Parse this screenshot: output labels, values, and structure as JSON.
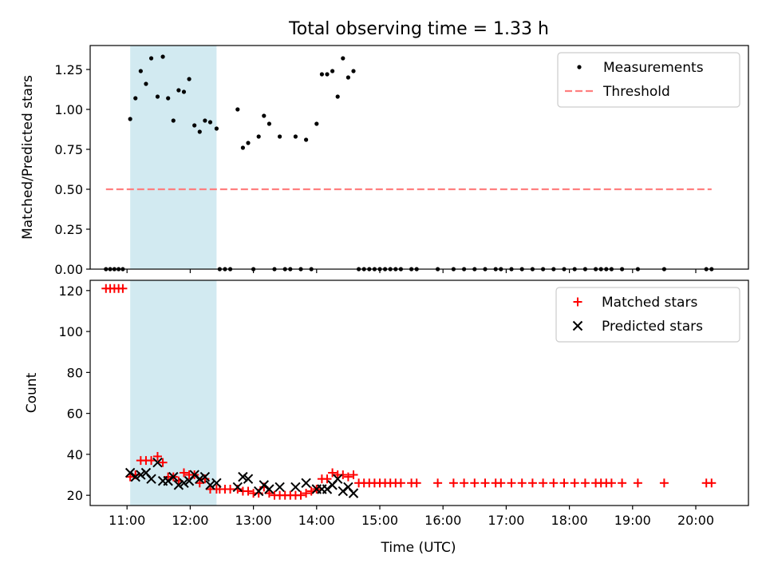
{
  "figure_title": "Total observing time = 1.33 h",
  "highlight_color": "#add8e6",
  "chart_data": [
    {
      "type": "scatter",
      "title": "Total observing time = 1.33 h",
      "xlabel": "",
      "ylabel": "Matched/Predicted stars",
      "xlim": [
        "10:25",
        "20:50"
      ],
      "ylim": [
        0,
        1.4
      ],
      "yticks": [
        0,
        0.25,
        0.5,
        0.75,
        1.0,
        1.25
      ],
      "ytick_labels": [
        "0.00",
        "0.25",
        "0.50",
        "0.75",
        "1.00",
        "1.25"
      ],
      "grid": false,
      "legend_position": "top-right",
      "highlight_span": [
        "11:03",
        "12:25"
      ],
      "series": [
        {
          "name": "Measurements",
          "marker": "dot",
          "color": "#000000",
          "points": [
            [
              "10:40",
              0
            ],
            [
              "10:44",
              0
            ],
            [
              "10:48",
              0
            ],
            [
              "10:52",
              0
            ],
            [
              "10:56",
              0
            ],
            [
              "11:03",
              0.94
            ],
            [
              "11:08",
              1.07
            ],
            [
              "11:13",
              1.24
            ],
            [
              "11:18",
              1.16
            ],
            [
              "11:23",
              1.32
            ],
            [
              "11:29",
              1.08
            ],
            [
              "11:34",
              1.33
            ],
            [
              "11:39",
              1.07
            ],
            [
              "11:44",
              0.93
            ],
            [
              "11:49",
              1.12
            ],
            [
              "11:54",
              1.11
            ],
            [
              "11:59",
              1.19
            ],
            [
              "12:04",
              0.9
            ],
            [
              "12:09",
              0.86
            ],
            [
              "12:14",
              0.93
            ],
            [
              "12:19",
              0.92
            ],
            [
              "12:25",
              0.88
            ],
            [
              "12:28",
              0
            ],
            [
              "12:33",
              0
            ],
            [
              "12:38",
              0
            ],
            [
              "12:45",
              1.0
            ],
            [
              "12:50",
              0.76
            ],
            [
              "12:55",
              0.79
            ],
            [
              "13:00",
              0
            ],
            [
              "13:05",
              0.83
            ],
            [
              "13:10",
              0.96
            ],
            [
              "13:15",
              0.91
            ],
            [
              "13:20",
              0
            ],
            [
              "13:25",
              0.83
            ],
            [
              "13:30",
              0
            ],
            [
              "13:35",
              0
            ],
            [
              "13:40",
              0.83
            ],
            [
              "13:45",
              0
            ],
            [
              "13:50",
              0.81
            ],
            [
              "13:55",
              0
            ],
            [
              "14:00",
              0.91
            ],
            [
              "14:05",
              1.22
            ],
            [
              "14:10",
              1.22
            ],
            [
              "14:15",
              1.24
            ],
            [
              "14:20",
              1.08
            ],
            [
              "14:25",
              1.32
            ],
            [
              "14:30",
              1.2
            ],
            [
              "14:35",
              1.24
            ],
            [
              "14:40",
              0
            ],
            [
              "14:45",
              0
            ],
            [
              "14:50",
              0
            ],
            [
              "14:55",
              0
            ],
            [
              "15:00",
              0
            ],
            [
              "15:05",
              0
            ],
            [
              "15:10",
              0
            ],
            [
              "15:15",
              0
            ],
            [
              "15:20",
              0
            ],
            [
              "15:30",
              0
            ],
            [
              "15:35",
              0
            ],
            [
              "15:55",
              0
            ],
            [
              "16:10",
              0
            ],
            [
              "16:20",
              0
            ],
            [
              "16:30",
              0
            ],
            [
              "16:40",
              0
            ],
            [
              "16:50",
              0
            ],
            [
              "16:55",
              0
            ],
            [
              "17:05",
              0
            ],
            [
              "17:15",
              0
            ],
            [
              "17:25",
              0
            ],
            [
              "17:35",
              0
            ],
            [
              "17:45",
              0
            ],
            [
              "17:55",
              0
            ],
            [
              "18:05",
              0
            ],
            [
              "18:15",
              0
            ],
            [
              "18:25",
              0
            ],
            [
              "18:30",
              0
            ],
            [
              "18:35",
              0
            ],
            [
              "18:40",
              0
            ],
            [
              "18:50",
              0
            ],
            [
              "19:05",
              0
            ],
            [
              "19:30",
              0
            ],
            [
              "20:10",
              0
            ],
            [
              "20:15",
              0
            ]
          ]
        },
        {
          "name": "Threshold",
          "type": "line",
          "style": "dashed",
          "color": "#ff7f7f",
          "points": [
            [
              "10:40",
              0.5
            ],
            [
              "20:15",
              0.5
            ]
          ]
        }
      ]
    },
    {
      "type": "scatter",
      "title": "",
      "xlabel": "Time (UTC)",
      "ylabel": "Count",
      "xlim": [
        "10:25",
        "20:50"
      ],
      "ylim": [
        15,
        125
      ],
      "yticks": [
        20,
        40,
        60,
        80,
        100,
        120
      ],
      "ytick_labels": [
        "20",
        "40",
        "60",
        "80",
        "100",
        "120"
      ],
      "xticks": [
        "11:00",
        "12:00",
        "13:00",
        "14:00",
        "15:00",
        "16:00",
        "17:00",
        "18:00",
        "19:00",
        "20:00"
      ],
      "grid": false,
      "legend_position": "top-right",
      "highlight_span": [
        "11:03",
        "12:25"
      ],
      "series": [
        {
          "name": "Matched stars",
          "marker": "plus",
          "color": "#ff0000",
          "points": [
            [
              "10:40",
              121
            ],
            [
              "10:44",
              121
            ],
            [
              "10:48",
              121
            ],
            [
              "10:52",
              121
            ],
            [
              "10:56",
              121
            ],
            [
              "11:03",
              29
            ],
            [
              "11:08",
              30
            ],
            [
              "11:13",
              37
            ],
            [
              "11:18",
              37
            ],
            [
              "11:23",
              37
            ],
            [
              "11:29",
              39
            ],
            [
              "11:34",
              36
            ],
            [
              "11:39",
              29
            ],
            [
              "11:44",
              29
            ],
            [
              "11:49",
              27
            ],
            [
              "11:54",
              31
            ],
            [
              "11:59",
              30
            ],
            [
              "12:04",
              30
            ],
            [
              "12:09",
              26
            ],
            [
              "12:14",
              28
            ],
            [
              "12:19",
              23
            ],
            [
              "12:25",
              23
            ],
            [
              "12:28",
              23
            ],
            [
              "12:33",
              23
            ],
            [
              "12:38",
              23
            ],
            [
              "12:45",
              23
            ],
            [
              "12:50",
              22
            ],
            [
              "12:55",
              22
            ],
            [
              "13:00",
              21
            ],
            [
              "13:05",
              21
            ],
            [
              "13:10",
              24
            ],
            [
              "13:15",
              21
            ],
            [
              "13:20",
              20
            ],
            [
              "13:25",
              20
            ],
            [
              "13:30",
              20
            ],
            [
              "13:35",
              20
            ],
            [
              "13:40",
              20
            ],
            [
              "13:45",
              20
            ],
            [
              "13:50",
              21
            ],
            [
              "13:55",
              22
            ],
            [
              "14:00",
              23
            ],
            [
              "14:05",
              28
            ],
            [
              "14:10",
              28
            ],
            [
              "14:15",
              31
            ],
            [
              "14:20",
              30
            ],
            [
              "14:25",
              30
            ],
            [
              "14:30",
              29
            ],
            [
              "14:35",
              30
            ],
            [
              "14:40",
              26
            ],
            [
              "14:45",
              26
            ],
            [
              "14:50",
              26
            ],
            [
              "14:55",
              26
            ],
            [
              "15:00",
              26
            ],
            [
              "15:05",
              26
            ],
            [
              "15:10",
              26
            ],
            [
              "15:15",
              26
            ],
            [
              "15:20",
              26
            ],
            [
              "15:30",
              26
            ],
            [
              "15:35",
              26
            ],
            [
              "15:55",
              26
            ],
            [
              "16:10",
              26
            ],
            [
              "16:20",
              26
            ],
            [
              "16:30",
              26
            ],
            [
              "16:40",
              26
            ],
            [
              "16:50",
              26
            ],
            [
              "16:55",
              26
            ],
            [
              "17:05",
              26
            ],
            [
              "17:15",
              26
            ],
            [
              "17:25",
              26
            ],
            [
              "17:35",
              26
            ],
            [
              "17:45",
              26
            ],
            [
              "17:55",
              26
            ],
            [
              "18:05",
              26
            ],
            [
              "18:15",
              26
            ],
            [
              "18:25",
              26
            ],
            [
              "18:30",
              26
            ],
            [
              "18:35",
              26
            ],
            [
              "18:40",
              26
            ],
            [
              "18:50",
              26
            ],
            [
              "19:05",
              26
            ],
            [
              "19:30",
              26
            ],
            [
              "20:10",
              26
            ],
            [
              "20:15",
              26
            ]
          ]
        },
        {
          "name": "Predicted stars",
          "marker": "x",
          "color": "#000000",
          "points": [
            [
              "11:03",
              31
            ],
            [
              "11:08",
              29
            ],
            [
              "11:13",
              30
            ],
            [
              "11:18",
              31
            ],
            [
              "11:23",
              28
            ],
            [
              "11:29",
              36
            ],
            [
              "11:34",
              27
            ],
            [
              "11:39",
              27
            ],
            [
              "11:44",
              29
            ],
            [
              "11:49",
              25
            ],
            [
              "11:54",
              26
            ],
            [
              "11:59",
              27
            ],
            [
              "12:04",
              30
            ],
            [
              "12:09",
              28
            ],
            [
              "12:14",
              29
            ],
            [
              "12:19",
              25
            ],
            [
              "12:25",
              26
            ],
            [
              "12:45",
              24
            ],
            [
              "12:50",
              29
            ],
            [
              "12:55",
              28
            ],
            [
              "13:05",
              22
            ],
            [
              "13:10",
              25
            ],
            [
              "13:15",
              23
            ],
            [
              "13:25",
              24
            ],
            [
              "13:40",
              24
            ],
            [
              "13:50",
              26
            ],
            [
              "14:00",
              23
            ],
            [
              "14:05",
              23
            ],
            [
              "14:10",
              23
            ],
            [
              "14:15",
              25
            ],
            [
              "14:20",
              28
            ],
            [
              "14:25",
              22
            ],
            [
              "14:30",
              24
            ],
            [
              "14:35",
              21
            ]
          ]
        }
      ]
    }
  ]
}
